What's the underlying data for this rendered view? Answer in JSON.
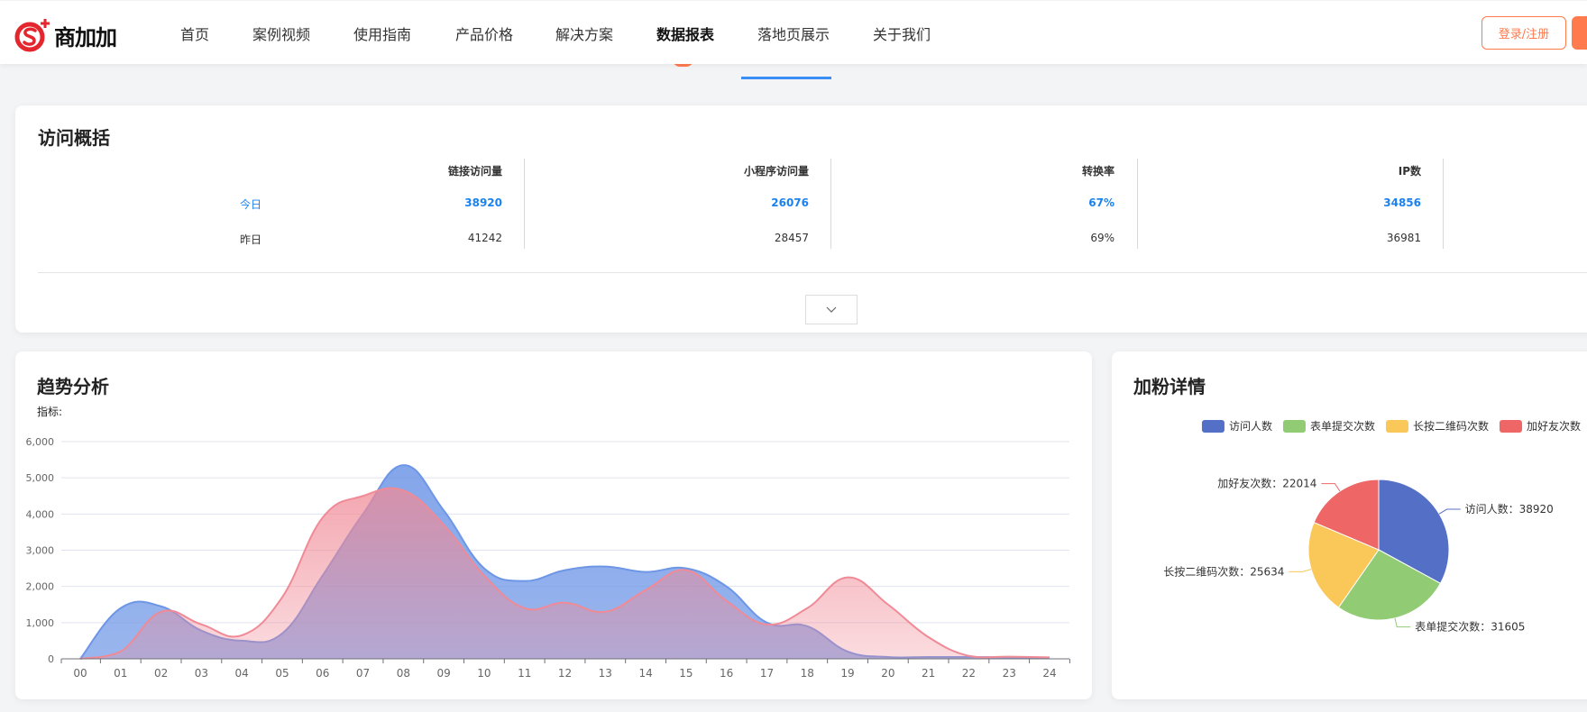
{
  "header": {
    "logo_text": "商加加",
    "nav": [
      {
        "label": "首页",
        "active": false
      },
      {
        "label": "案例视频",
        "active": false
      },
      {
        "label": "使用指南",
        "active": false
      },
      {
        "label": "产品价格",
        "active": false
      },
      {
        "label": "解决方案",
        "active": false
      },
      {
        "label": "数据报表",
        "active": true
      },
      {
        "label": "落地页展示",
        "active": false
      },
      {
        "label": "关于我们",
        "active": false
      }
    ],
    "login_label": "登录/注册",
    "accent": "#ff7a4d"
  },
  "overview": {
    "title": "访问概括",
    "columns": [
      "链接访问量",
      "小程序访问量",
      "转换率",
      "IP数"
    ],
    "rows": [
      {
        "label": "今日",
        "values": [
          "38920",
          "26076",
          "67%",
          "34856"
        ]
      },
      {
        "label": "昨日",
        "values": [
          "41242",
          "28457",
          "69%",
          "36981"
        ]
      }
    ],
    "expand_icon": "chevron-down-icon"
  },
  "trend": {
    "title": "趋势分析",
    "metric_label": "指标:"
  },
  "fans": {
    "title": "加粉详情"
  },
  "chart_data": [
    {
      "type": "area",
      "x": [
        "00",
        "01",
        "02",
        "03",
        "04",
        "05",
        "06",
        "07",
        "08",
        "09",
        "10",
        "11",
        "12",
        "13",
        "14",
        "15",
        "16",
        "17",
        "18",
        "19",
        "20",
        "21",
        "22",
        "23",
        "24"
      ],
      "ylim": [
        0,
        6000
      ],
      "yticks": [
        "0",
        "1,000",
        "2,000",
        "3,000",
        "4,000",
        "5,000",
        "6,000"
      ],
      "grid": true,
      "smooth": true,
      "series": [
        {
          "color": "#6e96e6",
          "values": [
            0,
            1400,
            1450,
            780,
            500,
            700,
            2300,
            4000,
            5350,
            4100,
            2500,
            2150,
            2450,
            2550,
            2400,
            2500,
            2000,
            1000,
            900,
            200,
            50,
            50,
            50,
            40,
            30
          ]
        },
        {
          "color": "#f08a96",
          "values": [
            0,
            200,
            1300,
            950,
            650,
            1700,
            3900,
            4500,
            4650,
            3700,
            2300,
            1400,
            1550,
            1300,
            1900,
            2450,
            1600,
            950,
            1400,
            2250,
            1500,
            600,
            80,
            60,
            40
          ]
        }
      ]
    },
    {
      "type": "pie",
      "legend": "top-right",
      "slices": [
        {
          "name": "访问人数",
          "value": 38920,
          "label": "访问人数：38920",
          "color": "#5470c6"
        },
        {
          "name": "表单提交次数",
          "value": 31605,
          "label": "表单提交次数：31605",
          "color": "#91cc75"
        },
        {
          "name": "长按二维码次数",
          "value": 25634,
          "label": "长按二维码次数：25634",
          "color": "#fac858"
        },
        {
          "name": "加好友次数",
          "value": 22014,
          "label": "加好友次数：22014",
          "color": "#ee6666"
        }
      ]
    }
  ]
}
